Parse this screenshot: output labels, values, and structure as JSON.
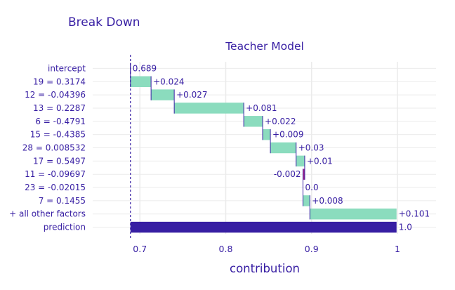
{
  "chart_data": {
    "type": "waterfall",
    "title": "Break Down",
    "subtitle": "Teacher Model",
    "xlabel": "contribution",
    "ylabel": "",
    "xlim": [
      0.645,
      1.045
    ],
    "xticks": [
      0.7,
      0.8,
      0.9,
      1
    ],
    "xtick_labels": [
      "0.7",
      "0.8",
      "0.9",
      "1"
    ],
    "baseline": 0.689,
    "grid": true,
    "rows": [
      {
        "variable": "intercept",
        "start": 0.689,
        "end": 0.689,
        "label": "0.689",
        "kind": "intercept"
      },
      {
        "variable": "19 = 0.3174",
        "start": 0.689,
        "end": 0.713,
        "label": "+0.024",
        "kind": "positive"
      },
      {
        "variable": "12 = -0.04396",
        "start": 0.713,
        "end": 0.74,
        "label": "+0.027",
        "kind": "positive"
      },
      {
        "variable": "13 = 0.2287",
        "start": 0.74,
        "end": 0.821,
        "label": "+0.081",
        "kind": "positive"
      },
      {
        "variable": "6 = -0.4791",
        "start": 0.821,
        "end": 0.843,
        "label": "+0.022",
        "kind": "positive"
      },
      {
        "variable": "15 = -0.4385",
        "start": 0.843,
        "end": 0.852,
        "label": "+0.009",
        "kind": "positive"
      },
      {
        "variable": "28 = 0.008532",
        "start": 0.852,
        "end": 0.882,
        "label": "+0.03",
        "kind": "positive"
      },
      {
        "variable": "17 = 0.5497",
        "start": 0.882,
        "end": 0.892,
        "label": "+0.01",
        "kind": "positive"
      },
      {
        "variable": "11 = -0.09697",
        "start": 0.892,
        "end": 0.89,
        "label": "-0.002",
        "kind": "negative"
      },
      {
        "variable": "23 = -0.02015",
        "start": 0.89,
        "end": 0.89,
        "label": "0.0",
        "kind": "zero"
      },
      {
        "variable": "7 = 0.1455",
        "start": 0.89,
        "end": 0.898,
        "label": "+0.008",
        "kind": "positive"
      },
      {
        "variable": "+ all other factors",
        "start": 0.898,
        "end": 0.999,
        "label": "+0.101",
        "kind": "positive"
      },
      {
        "variable": "prediction",
        "start": 0.689,
        "end": 0.999,
        "label": "1.0",
        "kind": "prediction"
      }
    ],
    "colors": {
      "positive": "#8bdcbe",
      "negative": "#ae2c87",
      "prediction": "#371ea3",
      "text": "#371ea3",
      "grid": "#ebebeb",
      "baseline": "#371ea3"
    }
  }
}
